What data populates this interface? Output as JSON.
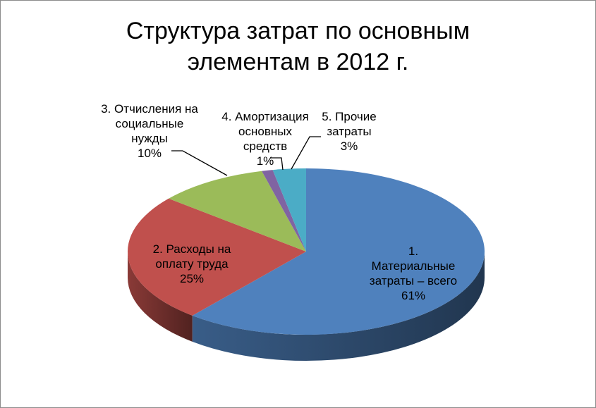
{
  "chart_data": {
    "type": "pie",
    "title": "Структура затрат по основным\nэлементам в 2012 г.",
    "categories": [
      "1.\nМатериальные\nзатраты – всего",
      "2. Расходы на\nоплату труда",
      "3. Отчисления на\nсоциальные\nнужды",
      "4. Амортизация\nосновных\nсредств",
      "5. Прочие\nзатраты"
    ],
    "values": [
      61,
      25,
      10,
      1,
      3
    ],
    "percent_labels": [
      "61%",
      "25%",
      "10%",
      "1%",
      "3%"
    ],
    "colors": [
      "#4f81bd",
      "#c0504d",
      "#9bbb59",
      "#8064a2",
      "#4bacc6"
    ],
    "legend": "none",
    "style": "3d"
  }
}
